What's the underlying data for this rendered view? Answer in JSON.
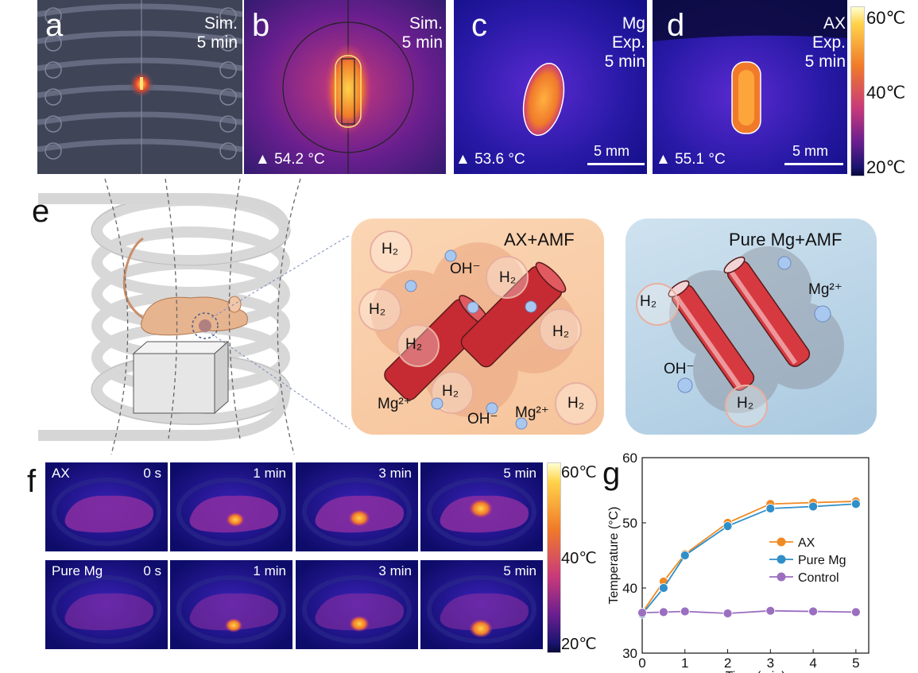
{
  "panels": {
    "a": {
      "letter": "a",
      "label": "Sim.\n5 min"
    },
    "b": {
      "letter": "b",
      "label": "Sim.\n5 min",
      "peak": "▲ 54.2 °C"
    },
    "c": {
      "letter": "c",
      "label": "Mg\nExp.\n5 min",
      "peak": "▲ 53.6 °C",
      "scale": "5 mm"
    },
    "d": {
      "letter": "d",
      "label": "AX\nExp.\n5 min",
      "peak": "▲ 55.1 °C",
      "scale": "5 mm"
    }
  },
  "colorbar_top": {
    "max": "60℃",
    "mid": "40℃",
    "min": "20℃"
  },
  "panel_e": {
    "letter": "e",
    "ax_box": {
      "title": "AX+AMF",
      "labels": [
        "H₂",
        "H₂",
        "H₂",
        "H₂",
        "H₂",
        "H₂",
        "OH⁻",
        "OH⁻",
        "Mg²⁺",
        "Mg²⁺"
      ]
    },
    "mg_box": {
      "title": "Pure Mg+AMF",
      "labels": [
        "H₂",
        "H₂",
        "Mg²⁺",
        "OH⁻"
      ]
    }
  },
  "panel_f": {
    "letter": "f",
    "rows": [
      {
        "name": "AX",
        "times": [
          "0 s",
          "1 min",
          "3 min",
          "5 min"
        ]
      },
      {
        "name": "Pure Mg",
        "times": [
          "0 s",
          "1 min",
          "3 min",
          "5 min"
        ]
      }
    ],
    "colorbar": {
      "max": "60℃",
      "mid": "40℃",
      "min": "20℃"
    }
  },
  "panel_g": {
    "letter": "g",
    "chart_data": {
      "type": "line",
      "x": [
        0,
        0.5,
        1,
        2,
        3,
        4,
        5
      ],
      "series": [
        {
          "name": "AX",
          "values": [
            36.2,
            41.0,
            45.2,
            50.0,
            52.9,
            53.1,
            53.3
          ],
          "color": "#f08a24"
        },
        {
          "name": "Pure Mg",
          "values": [
            36.0,
            40.0,
            45.0,
            49.5,
            52.2,
            52.5,
            52.9
          ],
          "color": "#2f8fc9"
        },
        {
          "name": "Control",
          "values": [
            36.2,
            36.3,
            36.4,
            36.1,
            36.5,
            36.4,
            36.3
          ],
          "color": "#9b6fc0"
        }
      ],
      "xlabel": "Time (min)",
      "ylabel": "Temperature (°C)",
      "xlim": [
        0,
        5.3
      ],
      "ylim": [
        30,
        60
      ],
      "xticks": [
        "0",
        "1",
        "2",
        "3",
        "4",
        "5"
      ],
      "yticks": [
        "30",
        "40",
        "50",
        "60"
      ],
      "legend": "center-right"
    }
  }
}
